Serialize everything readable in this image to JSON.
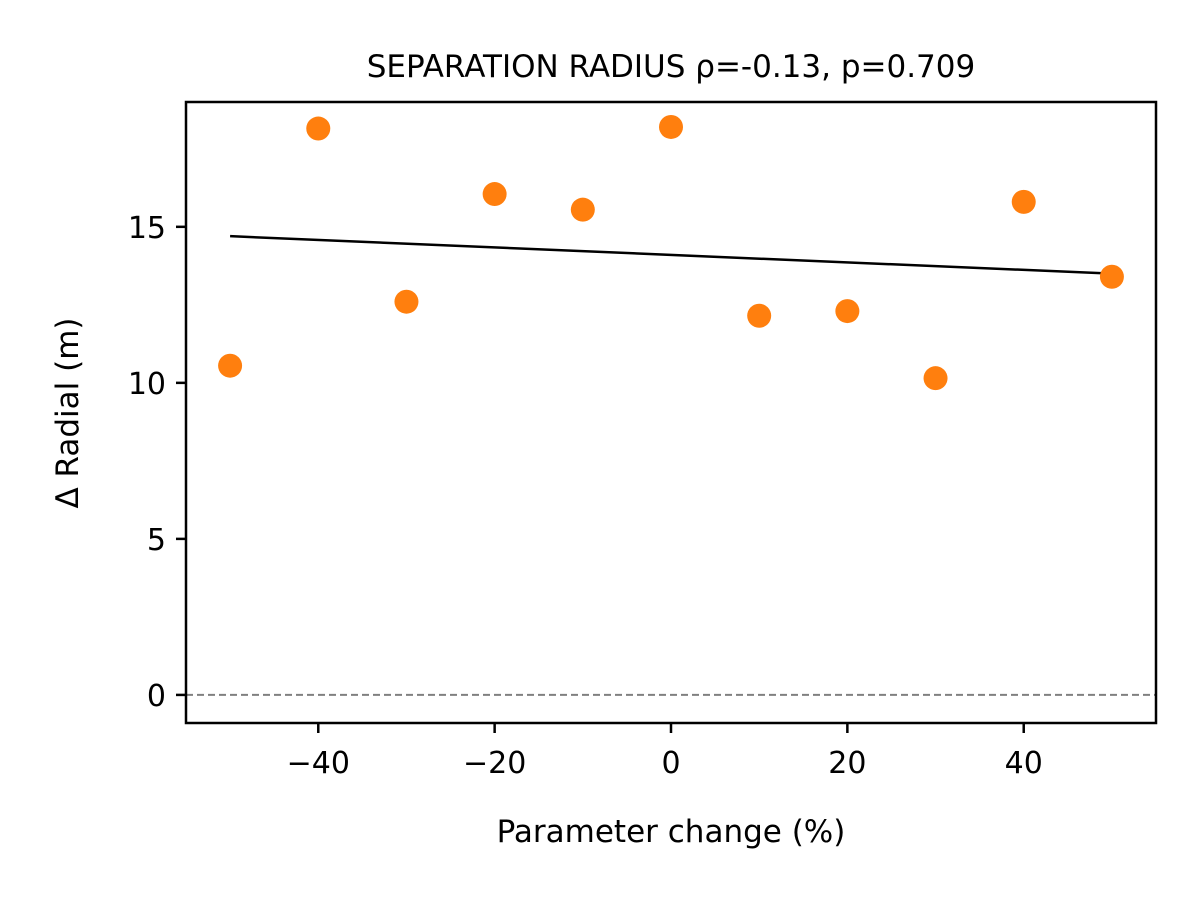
{
  "chart_data": {
    "type": "scatter",
    "title": "SEPARATION RADIUS  ρ=-0.13, p=0.709",
    "xlabel": "Parameter change (%)",
    "ylabel": "Δ Radial (m)",
    "xlim": [
      -55,
      55
    ],
    "ylim": [
      -0.9,
      19.0
    ],
    "xticks": [
      -40,
      -20,
      0,
      20,
      40
    ],
    "xtick_labels": [
      "−40",
      "−20",
      "0",
      "20",
      "40"
    ],
    "yticks": [
      0,
      5,
      10,
      15
    ],
    "ytick_labels": [
      "0",
      "5",
      "10",
      "15"
    ],
    "series": [
      {
        "name": "points",
        "x": [
          -50,
          -40,
          -30,
          -20,
          -10,
          0,
          10,
          20,
          30,
          40,
          50
        ],
        "y": [
          10.55,
          18.15,
          12.6,
          16.05,
          15.55,
          18.2,
          12.15,
          12.3,
          10.15,
          15.8,
          13.4
        ]
      }
    ],
    "fit_line": {
      "x": [
        -50,
        50
      ],
      "y": [
        14.7,
        13.5
      ]
    },
    "reference_line": {
      "y": 0,
      "style": "dashed"
    },
    "grid": false,
    "colors": {
      "points": "#ff7f0e",
      "fit_line": "#000000",
      "reference_line": "#808080"
    }
  }
}
